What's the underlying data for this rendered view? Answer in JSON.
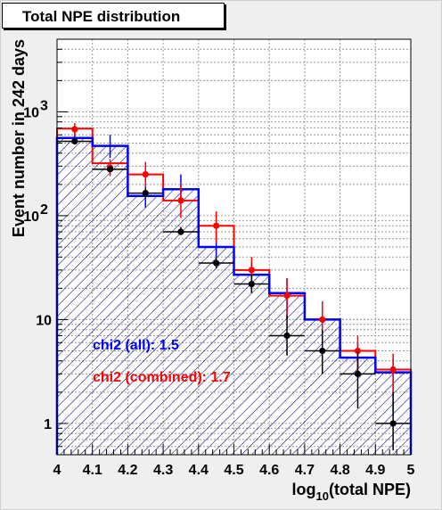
{
  "chart_data": {
    "type": "histogram",
    "title": "Total NPE distribution",
    "xlabel": "log10(total NPE)",
    "xlabel_parts": {
      "base": "log",
      "sub": "10",
      "rest": "(total NPE)"
    },
    "ylabel": "Event number in 242 days",
    "xlim": [
      4.0,
      5.0
    ],
    "ylim": [
      0.5,
      5000
    ],
    "yscale": "log",
    "grid": true,
    "x_ticks": [
      "4",
      "4.1",
      "4.2",
      "4.3",
      "4.4",
      "4.5",
      "4.6",
      "4.7",
      "4.8",
      "4.9",
      "5"
    ],
    "y_ticks": [
      {
        "value": 1,
        "label": "1"
      },
      {
        "value": 10,
        "label": "10"
      },
      {
        "value": 100,
        "label": "10",
        "sup": "2"
      },
      {
        "value": 1000,
        "label": "10",
        "sup": "3"
      }
    ],
    "bin_edges": [
      4.0,
      4.1,
      4.2,
      4.3,
      4.4,
      4.5,
      4.6,
      4.7,
      4.8,
      4.9,
      5.0
    ],
    "series": [
      {
        "name": "Blue histogram",
        "kind": "step-hatched",
        "color": "#0000ff",
        "values": [
          560,
          470,
          155,
          180,
          50,
          27,
          18,
          10,
          4.3,
          3.1
        ]
      },
      {
        "name": "Red histogram",
        "kind": "step",
        "color": "#ff0000",
        "values": [
          690,
          320,
          250,
          140,
          80,
          30,
          17,
          10,
          5,
          3.3
        ]
      },
      {
        "name": "Red points",
        "kind": "points",
        "color": "#ff0000",
        "x": [
          4.05,
          4.15,
          4.25,
          4.35,
          4.45,
          4.55,
          4.65,
          4.75,
          4.85,
          4.95
        ],
        "y": [
          680,
          290,
          250,
          140,
          80,
          30,
          17,
          10,
          5,
          3.3
        ],
        "err_low": [
          590,
          240,
          190,
          95,
          55,
          20,
          10,
          6,
          3,
          2
        ],
        "err_high": [
          780,
          350,
          330,
          200,
          110,
          40,
          25,
          15,
          7,
          4.7
        ]
      },
      {
        "name": "Blue errors",
        "kind": "errorbars",
        "color": "#0000ff",
        "x": [
          4.05,
          4.15,
          4.25,
          4.35,
          4.45,
          4.55,
          4.65,
          4.75,
          4.85,
          4.95
        ],
        "err_low": [
          490,
          360,
          120,
          140,
          40,
          20,
          10,
          7,
          3,
          1.2
        ],
        "err_high": [
          640,
          600,
          200,
          250,
          70,
          35,
          25,
          13,
          6,
          4.2
        ]
      },
      {
        "name": "Black points",
        "kind": "points",
        "color": "#000000",
        "x": [
          4.05,
          4.15,
          4.25,
          4.35,
          4.45,
          4.55,
          4.65,
          4.75,
          4.85,
          4.95
        ],
        "y": [
          520,
          280,
          165,
          70,
          35,
          22,
          7,
          5,
          3,
          1
        ],
        "err_low": [
          500,
          265,
          150,
          65,
          31,
          18,
          4.5,
          3,
          1.4,
          0.55
        ],
        "err_high": [
          545,
          300,
          180,
          78,
          40,
          27,
          11,
          8,
          5,
          2
        ]
      }
    ],
    "annotations": [
      {
        "text": "chi2 (all): 1.5",
        "color": "#0000ff"
      },
      {
        "text": "chi2 (combined): 1.7",
        "color": "#ff0000"
      }
    ]
  }
}
